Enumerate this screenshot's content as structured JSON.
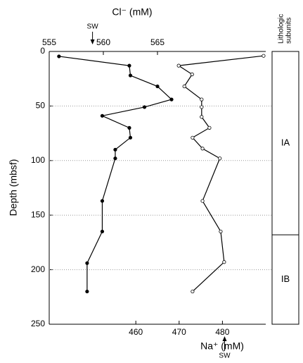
{
  "chart_data": {
    "type": "line",
    "xlabel": "Cl⁻ (mM)",
    "x2label": "Na⁺ (mM)",
    "ylabel": "Depth (mbsf)",
    "xlim": [
      555,
      575
    ],
    "xticks": [
      555,
      560,
      565
    ],
    "x2lim": [
      440,
      490
    ],
    "x2ticks": [
      460,
      470,
      480
    ],
    "ylim": [
      0,
      250
    ],
    "yticks": [
      0,
      50,
      100,
      150,
      200,
      250
    ],
    "y_inverted": true,
    "grid": true,
    "series": [
      {
        "axis": "x",
        "marker": "filled",
        "color": "#000",
        "x": [
          555.9,
          562.4,
          562.5,
          565.0,
          566.3,
          563.8,
          559.9,
          562.4,
          562.5,
          561.1,
          561.1,
          559.9,
          559.9,
          558.5,
          558.5
        ],
        "y": [
          4.5,
          13,
          22,
          32,
          44,
          51,
          59,
          70,
          79,
          90,
          98,
          137,
          165,
          194,
          220
        ]
      },
      {
        "axis": "x2",
        "marker": "open",
        "color": "#000",
        "x": [
          489.5,
          469.9,
          473,
          471.2,
          475.2,
          475.2,
          475.2,
          477,
          473.1,
          475.4,
          479.4,
          475.4,
          479.6,
          480.4,
          473.1
        ],
        "y": [
          4,
          13,
          21,
          32,
          44,
          51,
          60,
          70,
          79,
          89,
          98,
          137,
          165,
          193,
          220
        ]
      }
    ],
    "annotations": [
      {
        "label": "SW",
        "axis": "x",
        "value": 559
      },
      {
        "label": "SW",
        "axis": "x2",
        "value": 480.5
      }
    ],
    "lithology": {
      "title": [
        "Lithologic",
        "subunits"
      ],
      "units": [
        {
          "label": "IA",
          "top": 0,
          "bottom": 168
        },
        {
          "label": "IB",
          "top": 168,
          "bottom": 250
        }
      ]
    }
  }
}
